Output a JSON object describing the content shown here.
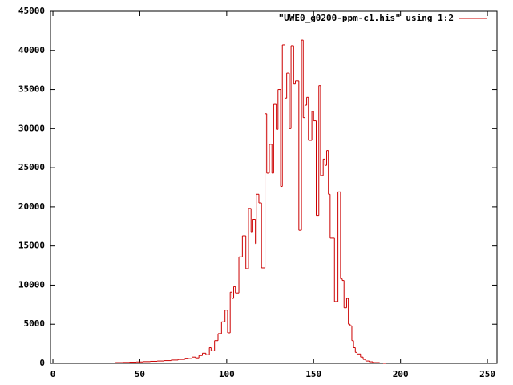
{
  "chart_data": {
    "type": "step",
    "legend": "\"UWE0_g0200-ppm-c1.his\" using 1:2",
    "legend_position": "top-right",
    "series": [
      {
        "name": "\"UWE0_g0200-ppm-c1.his\" using 1:2",
        "color": "#cc0000",
        "x": [
          36,
          40,
          44,
          48,
          52,
          56,
          60,
          64,
          68,
          72,
          76,
          78,
          80,
          82,
          84,
          86,
          88,
          90,
          91,
          93,
          95,
          97,
          99,
          100.5,
          102,
          103,
          104,
          105,
          107,
          109,
          111,
          112.5,
          114,
          115,
          116.5,
          117,
          118.5,
          120,
          122,
          123,
          124.5,
          126,
          127,
          128.5,
          129.5,
          131,
          132,
          133.5,
          134.5,
          136,
          137,
          138.5,
          139.5,
          141.5,
          143,
          144,
          145,
          146,
          147,
          149,
          150,
          151.5,
          153,
          154,
          155.5,
          156.5,
          157.5,
          158.5,
          159.5,
          162,
          164,
          165.5,
          166.5,
          167.5,
          169,
          170,
          171,
          172,
          173,
          174,
          175,
          177,
          178.5,
          180,
          182,
          184,
          188,
          190
        ],
        "values": [
          100,
          120,
          150,
          180,
          220,
          260,
          300,
          350,
          420,
          500,
          650,
          600,
          800,
          700,
          1000,
          1300,
          1100,
          2000,
          1600,
          2900,
          3800,
          5300,
          6800,
          3900,
          9100,
          8300,
          9800,
          9000,
          13600,
          16300,
          12100,
          19800,
          16800,
          18400,
          15300,
          21600,
          20500,
          12200,
          31900,
          24300,
          28000,
          24300,
          33100,
          29900,
          35000,
          22600,
          40700,
          33900,
          37100,
          30000,
          40600,
          35700,
          36100,
          17000,
          41300,
          31400,
          33000,
          34000,
          28500,
          32200,
          31000,
          18900,
          35500,
          24000,
          26100,
          25300,
          27200,
          21600,
          16000,
          7900,
          21900,
          10800,
          10600,
          7100,
          8300,
          5000,
          4800,
          2900,
          2000,
          1400,
          1200,
          800,
          500,
          300,
          200,
          100,
          50,
          0
        ]
      }
    ],
    "xlim": [
      -1.4,
      255.5
    ],
    "ylim": [
      0,
      45000
    ],
    "xticks": [
      0,
      50,
      100,
      150,
      200,
      250
    ],
    "yticks": [
      0,
      5000,
      10000,
      15000,
      20000,
      25000,
      30000,
      35000,
      40000,
      45000
    ]
  }
}
